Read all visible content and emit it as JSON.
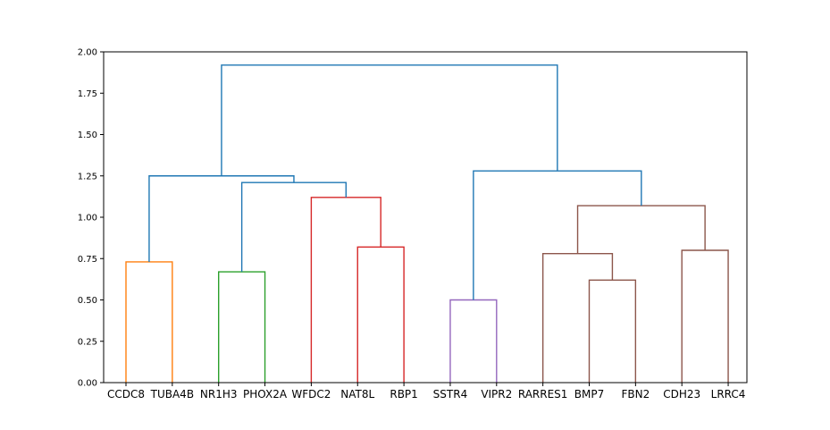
{
  "chart_data": {
    "type": "dendrogram",
    "title": "",
    "xlabel": "",
    "ylabel": "",
    "ylim": [
      0,
      2.0
    ],
    "yticks": [
      0.0,
      0.25,
      0.5,
      0.75,
      1.0,
      1.25,
      1.5,
      1.75,
      2.0
    ],
    "ytick_labels": [
      "0.00",
      "0.25",
      "0.50",
      "0.75",
      "1.00",
      "1.25",
      "1.50",
      "1.75",
      "2.00"
    ],
    "grid": false,
    "leaves": [
      "CCDC8",
      "TUBA4B",
      "NR1H3",
      "PHOX2A",
      "WFDC2",
      "NAT8L",
      "RBP1",
      "SSTR4",
      "VIPR2",
      "RARRES1",
      "BMP7",
      "FBN2",
      "CDH23",
      "LRRC4"
    ],
    "merges": [
      {
        "left": "leaf:0",
        "right": "leaf:1",
        "height": 0.73,
        "color": "#ff7f0e"
      },
      {
        "left": "leaf:2",
        "right": "leaf:3",
        "height": 0.67,
        "color": "#2ca02c"
      },
      {
        "left": "leaf:5",
        "right": "leaf:6",
        "height": 0.82,
        "color": "#d62728"
      },
      {
        "left": "leaf:4",
        "right": "node:2",
        "height": 1.12,
        "color": "#d62728"
      },
      {
        "left": "node:1",
        "right": "node:3",
        "height": 1.21,
        "color": "#1f77b4"
      },
      {
        "left": "node:0",
        "right": "node:4",
        "height": 1.25,
        "color": "#1f77b4"
      },
      {
        "left": "leaf:7",
        "right": "leaf:8",
        "height": 0.5,
        "color": "#9467bd"
      },
      {
        "left": "leaf:10",
        "right": "leaf:11",
        "height": 0.62,
        "color": "#8c564b"
      },
      {
        "left": "leaf:9",
        "right": "node:7",
        "height": 0.78,
        "color": "#8c564b"
      },
      {
        "left": "leaf:12",
        "right": "leaf:13",
        "height": 0.8,
        "color": "#8c564b"
      },
      {
        "left": "node:8",
        "right": "node:9",
        "height": 1.07,
        "color": "#8c564b"
      },
      {
        "left": "node:6",
        "right": "node:10",
        "height": 1.28,
        "color": "#1f77b4"
      },
      {
        "left": "node:5",
        "right": "node:11",
        "height": 1.92,
        "color": "#1f77b4"
      }
    ]
  }
}
